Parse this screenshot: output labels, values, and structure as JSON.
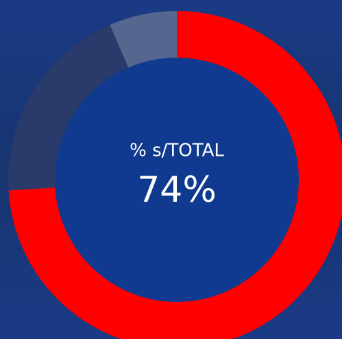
{
  "chart_data": {
    "type": "donut",
    "center_label": "% s/TOTAL",
    "values": [
      74,
      19.5,
      6.5
    ],
    "value_labels": [
      "74%",
      null,
      null
    ],
    "colors": [
      "#ff0000",
      "#2a3a6a",
      "#56668f"
    ]
  }
}
